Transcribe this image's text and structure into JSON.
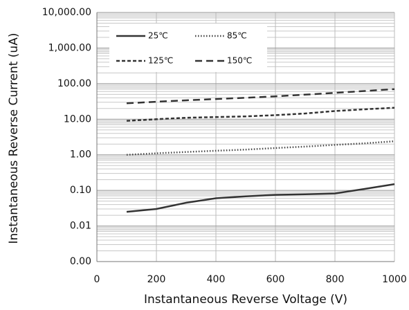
{
  "chart_data": {
    "type": "line",
    "x_label": "Instantaneous Reverse Voltage (V)",
    "y_label": "Instantaneous Reverse Current (uA)",
    "log_y": true,
    "grid": true,
    "legend": "upper left",
    "xlim": [
      0,
      1000
    ],
    "xticks": [
      0,
      200,
      400,
      600,
      800,
      1000
    ],
    "ylim": [
      0.001,
      10000
    ],
    "yticks": [
      {
        "value": 0.001,
        "label": "0.00"
      },
      {
        "value": 0.01,
        "label": "0.01"
      },
      {
        "value": 0.1,
        "label": "0.10"
      },
      {
        "value": 1,
        "label": "1.00"
      },
      {
        "value": 10,
        "label": "10.00"
      },
      {
        "value": 100,
        "label": "100.00"
      },
      {
        "value": 1000,
        "label": "1,000.00"
      },
      {
        "value": 10000,
        "label": "10,000.00"
      }
    ],
    "x": [
      100,
      200,
      300,
      400,
      500,
      600,
      700,
      800,
      900,
      1000
    ],
    "series": [
      {
        "name": "25℃",
        "color": "#333333",
        "dash": "none",
        "values": [
          0.025,
          0.03,
          0.045,
          0.06,
          0.068,
          0.075,
          0.078,
          0.082,
          0.11,
          0.15
        ]
      },
      {
        "name": "85℃",
        "color": "#444444",
        "dash": "1.5 2.5",
        "values": [
          1.0,
          1.1,
          1.2,
          1.3,
          1.4,
          1.55,
          1.7,
          1.9,
          2.1,
          2.4
        ]
      },
      {
        "name": "125℃",
        "color": "#333333",
        "dash": "5 3",
        "values": [
          9,
          10,
          11,
          11.5,
          12,
          13,
          14.5,
          17,
          19,
          21
        ]
      },
      {
        "name": "150℃",
        "color": "#333333",
        "dash": "10 6",
        "values": [
          28,
          31,
          34,
          37,
          40,
          44,
          49,
          55,
          62,
          70
        ]
      }
    ]
  }
}
